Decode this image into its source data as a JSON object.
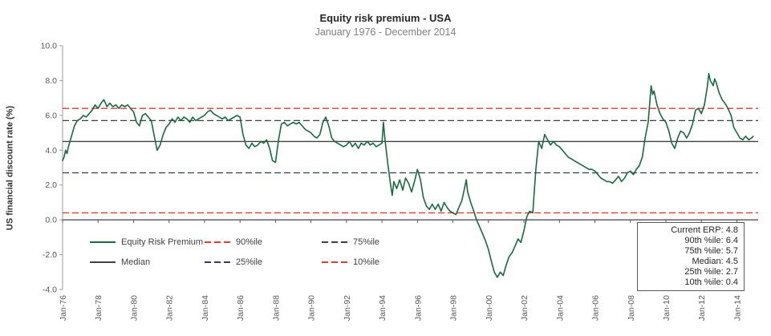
{
  "chart_data": {
    "type": "line",
    "title": "Equity risk premium - USA",
    "subtitle": "January 1976 - December 2014",
    "ylabel": "US financial discount rate (%)",
    "ylim": [
      -4.0,
      10.0
    ],
    "x_range": [
      1976,
      2015.2
    ],
    "grid": "off",
    "legend_position": "inside-bottom-left",
    "ytick_values": [
      10,
      8,
      6,
      4,
      2,
      0,
      -2,
      -4
    ],
    "ytick_labels": [
      "10.0",
      "8.0",
      "6.0",
      "4.0",
      "2.0",
      "0.0",
      "-2.0",
      "-4.0"
    ],
    "xtick_years": [
      1976,
      1978,
      1980,
      1982,
      1984,
      1986,
      1988,
      1990,
      1992,
      1994,
      1996,
      1998,
      2000,
      2002,
      2004,
      2006,
      2008,
      2010,
      2012,
      2014
    ],
    "xtick_labels": [
      "Jan-76",
      "Jan-78",
      "Jan-80",
      "Jan-82",
      "Jan-84",
      "Jan-86",
      "Jan-88",
      "Jan-90",
      "Jan-92",
      "Jan-94",
      "Jan-96",
      "Jan-98",
      "Jan-00",
      "Jan-02",
      "Jan-04",
      "Jan-06",
      "Jan-08",
      "Jan-10",
      "Jan-12",
      "Jan-14"
    ],
    "series": [
      {
        "name": "Equity Risk Premium",
        "color": "#176b3e",
        "points": [
          [
            1976.0,
            3.4
          ],
          [
            1976.08,
            3.6
          ],
          [
            1976.17,
            4.0
          ],
          [
            1976.25,
            3.8
          ],
          [
            1976.33,
            4.2
          ],
          [
            1976.5,
            4.8
          ],
          [
            1976.67,
            5.4
          ],
          [
            1976.83,
            5.7
          ],
          [
            1977.0,
            5.8
          ],
          [
            1977.17,
            6.0
          ],
          [
            1977.33,
            5.9
          ],
          [
            1977.5,
            6.1
          ],
          [
            1977.67,
            6.3
          ],
          [
            1977.83,
            6.6
          ],
          [
            1978.0,
            6.4
          ],
          [
            1978.17,
            6.7
          ],
          [
            1978.33,
            6.9
          ],
          [
            1978.5,
            6.5
          ],
          [
            1978.67,
            6.7
          ],
          [
            1978.83,
            6.5
          ],
          [
            1979.0,
            6.6
          ],
          [
            1979.17,
            6.4
          ],
          [
            1979.33,
            6.6
          ],
          [
            1979.5,
            6.5
          ],
          [
            1979.67,
            6.6
          ],
          [
            1979.83,
            6.4
          ],
          [
            1980.0,
            6.2
          ],
          [
            1980.17,
            5.6
          ],
          [
            1980.33,
            5.4
          ],
          [
            1980.5,
            6.0
          ],
          [
            1980.67,
            6.1
          ],
          [
            1980.83,
            5.9
          ],
          [
            1981.0,
            5.7
          ],
          [
            1981.17,
            4.8
          ],
          [
            1981.33,
            4.0
          ],
          [
            1981.5,
            4.3
          ],
          [
            1981.67,
            4.9
          ],
          [
            1981.83,
            5.3
          ],
          [
            1982.0,
            5.5
          ],
          [
            1982.17,
            5.8
          ],
          [
            1982.33,
            5.6
          ],
          [
            1982.5,
            5.9
          ],
          [
            1982.67,
            5.7
          ],
          [
            1982.83,
            5.9
          ],
          [
            1983.0,
            5.8
          ],
          [
            1983.17,
            5.6
          ],
          [
            1983.33,
            5.9
          ],
          [
            1983.5,
            5.7
          ],
          [
            1983.67,
            5.8
          ],
          [
            1983.83,
            5.9
          ],
          [
            1984.0,
            6.0
          ],
          [
            1984.17,
            6.2
          ],
          [
            1984.33,
            6.3
          ],
          [
            1984.5,
            6.1
          ],
          [
            1984.67,
            6.0
          ],
          [
            1984.83,
            5.9
          ],
          [
            1985.0,
            5.8
          ],
          [
            1985.17,
            5.9
          ],
          [
            1985.33,
            5.7
          ],
          [
            1985.5,
            5.8
          ],
          [
            1985.67,
            5.9
          ],
          [
            1985.83,
            6.0
          ],
          [
            1986.0,
            5.9
          ],
          [
            1986.17,
            4.9
          ],
          [
            1986.33,
            4.3
          ],
          [
            1986.5,
            4.1
          ],
          [
            1986.67,
            4.4
          ],
          [
            1986.83,
            4.2
          ],
          [
            1987.0,
            4.3
          ],
          [
            1987.17,
            4.5
          ],
          [
            1987.33,
            4.4
          ],
          [
            1987.5,
            4.6
          ],
          [
            1987.67,
            4.1
          ],
          [
            1987.83,
            3.4
          ],
          [
            1988.0,
            3.3
          ],
          [
            1988.17,
            4.6
          ],
          [
            1988.33,
            5.5
          ],
          [
            1988.5,
            5.6
          ],
          [
            1988.67,
            5.4
          ],
          [
            1988.83,
            5.5
          ],
          [
            1989.0,
            5.6
          ],
          [
            1989.17,
            5.5
          ],
          [
            1989.33,
            5.6
          ],
          [
            1989.5,
            5.4
          ],
          [
            1989.67,
            5.2
          ],
          [
            1989.83,
            5.1
          ],
          [
            1990.0,
            5.0
          ],
          [
            1990.17,
            4.8
          ],
          [
            1990.33,
            4.7
          ],
          [
            1990.5,
            4.9
          ],
          [
            1990.67,
            5.6
          ],
          [
            1990.83,
            5.9
          ],
          [
            1991.0,
            5.4
          ],
          [
            1991.17,
            4.7
          ],
          [
            1991.33,
            4.5
          ],
          [
            1991.5,
            4.4
          ],
          [
            1991.67,
            4.3
          ],
          [
            1991.83,
            4.2
          ],
          [
            1992.0,
            4.3
          ],
          [
            1992.17,
            4.5
          ],
          [
            1992.33,
            4.2
          ],
          [
            1992.5,
            4.4
          ],
          [
            1992.67,
            4.1
          ],
          [
            1992.83,
            4.4
          ],
          [
            1993.0,
            4.3
          ],
          [
            1993.17,
            4.5
          ],
          [
            1993.33,
            4.3
          ],
          [
            1993.5,
            4.4
          ],
          [
            1993.67,
            4.2
          ],
          [
            1993.83,
            4.3
          ],
          [
            1994.0,
            4.4
          ],
          [
            1994.08,
            5.6
          ],
          [
            1994.17,
            4.6
          ],
          [
            1994.33,
            3.2
          ],
          [
            1994.5,
            1.9
          ],
          [
            1994.58,
            1.4
          ],
          [
            1994.67,
            2.2
          ],
          [
            1994.83,
            1.8
          ],
          [
            1995.0,
            2.3
          ],
          [
            1995.17,
            1.7
          ],
          [
            1995.33,
            2.4
          ],
          [
            1995.5,
            2.1
          ],
          [
            1995.67,
            1.6
          ],
          [
            1995.83,
            2.2
          ],
          [
            1996.0,
            2.9
          ],
          [
            1996.17,
            2.3
          ],
          [
            1996.33,
            1.3
          ],
          [
            1996.5,
            0.8
          ],
          [
            1996.67,
            0.6
          ],
          [
            1996.83,
            0.9
          ],
          [
            1997.0,
            0.6
          ],
          [
            1997.17,
            0.9
          ],
          [
            1997.33,
            0.5
          ],
          [
            1997.5,
            1.0
          ],
          [
            1997.67,
            0.7
          ],
          [
            1997.83,
            0.5
          ],
          [
            1998.0,
            0.4
          ],
          [
            1998.17,
            0.3
          ],
          [
            1998.33,
            0.7
          ],
          [
            1998.5,
            1.1
          ],
          [
            1998.67,
            1.9
          ],
          [
            1998.75,
            2.3
          ],
          [
            1998.83,
            1.6
          ],
          [
            1999.0,
            1.0
          ],
          [
            1999.17,
            0.5
          ],
          [
            1999.33,
            0.0
          ],
          [
            1999.5,
            -0.4
          ],
          [
            1999.67,
            -0.8
          ],
          [
            1999.83,
            -1.2
          ],
          [
            2000.0,
            -1.7
          ],
          [
            2000.17,
            -2.4
          ],
          [
            2000.33,
            -3.0
          ],
          [
            2000.5,
            -3.3
          ],
          [
            2000.67,
            -3.0
          ],
          [
            2000.83,
            -3.2
          ],
          [
            2001.0,
            -2.6
          ],
          [
            2001.17,
            -2.1
          ],
          [
            2001.33,
            -1.9
          ],
          [
            2001.5,
            -1.5
          ],
          [
            2001.67,
            -1.1
          ],
          [
            2001.83,
            -1.3
          ],
          [
            2002.0,
            -0.6
          ],
          [
            2002.17,
            0.2
          ],
          [
            2002.33,
            0.5
          ],
          [
            2002.5,
            0.4
          ],
          [
            2002.58,
            1.6
          ],
          [
            2002.67,
            2.9
          ],
          [
            2002.83,
            4.5
          ],
          [
            2003.0,
            4.1
          ],
          [
            2003.17,
            4.9
          ],
          [
            2003.33,
            4.6
          ],
          [
            2003.5,
            4.3
          ],
          [
            2003.67,
            4.5
          ],
          [
            2003.83,
            4.3
          ],
          [
            2004.0,
            4.2
          ],
          [
            2004.17,
            4.0
          ],
          [
            2004.33,
            3.8
          ],
          [
            2004.5,
            3.6
          ],
          [
            2004.67,
            3.5
          ],
          [
            2004.83,
            3.4
          ],
          [
            2005.0,
            3.3
          ],
          [
            2005.17,
            3.2
          ],
          [
            2005.33,
            3.1
          ],
          [
            2005.5,
            3.0
          ],
          [
            2005.67,
            2.9
          ],
          [
            2005.83,
            2.9
          ],
          [
            2006.0,
            2.8
          ],
          [
            2006.17,
            2.6
          ],
          [
            2006.33,
            2.4
          ],
          [
            2006.5,
            2.3
          ],
          [
            2006.67,
            2.2
          ],
          [
            2006.83,
            2.2
          ],
          [
            2007.0,
            2.1
          ],
          [
            2007.17,
            2.3
          ],
          [
            2007.33,
            2.5
          ],
          [
            2007.5,
            2.2
          ],
          [
            2007.67,
            2.4
          ],
          [
            2007.83,
            2.7
          ],
          [
            2008.0,
            2.8
          ],
          [
            2008.17,
            2.6
          ],
          [
            2008.33,
            2.9
          ],
          [
            2008.5,
            3.1
          ],
          [
            2008.67,
            3.6
          ],
          [
            2008.83,
            4.7
          ],
          [
            2009.0,
            5.6
          ],
          [
            2009.17,
            7.7
          ],
          [
            2009.25,
            7.2
          ],
          [
            2009.33,
            7.4
          ],
          [
            2009.5,
            6.6
          ],
          [
            2009.67,
            6.1
          ],
          [
            2009.83,
            5.8
          ],
          [
            2010.0,
            5.6
          ],
          [
            2010.17,
            5.1
          ],
          [
            2010.33,
            4.4
          ],
          [
            2010.5,
            4.1
          ],
          [
            2010.67,
            4.7
          ],
          [
            2010.83,
            5.1
          ],
          [
            2011.0,
            5.0
          ],
          [
            2011.17,
            4.7
          ],
          [
            2011.33,
            5.0
          ],
          [
            2011.5,
            5.5
          ],
          [
            2011.67,
            6.3
          ],
          [
            2011.83,
            6.4
          ],
          [
            2012.0,
            6.1
          ],
          [
            2012.17,
            6.6
          ],
          [
            2012.33,
            7.6
          ],
          [
            2012.42,
            8.4
          ],
          [
            2012.5,
            8.0
          ],
          [
            2012.67,
            7.7
          ],
          [
            2012.75,
            8.1
          ],
          [
            2012.83,
            7.9
          ],
          [
            2013.0,
            7.3
          ],
          [
            2013.17,
            6.9
          ],
          [
            2013.33,
            6.7
          ],
          [
            2013.5,
            6.4
          ],
          [
            2013.67,
            6.0
          ],
          [
            2013.83,
            5.3
          ],
          [
            2014.0,
            5.0
          ],
          [
            2014.17,
            4.7
          ],
          [
            2014.33,
            4.6
          ],
          [
            2014.5,
            4.8
          ],
          [
            2014.67,
            4.6
          ],
          [
            2014.83,
            4.7
          ],
          [
            2014.92,
            4.8
          ]
        ]
      }
    ],
    "reference_lines": [
      {
        "key": "p90",
        "name": "90%ile",
        "value": 6.4,
        "color": "#e8392d",
        "style": "dashed"
      },
      {
        "key": "p75",
        "name": "75%ile",
        "value": 5.7,
        "color": "#3f3f3f",
        "style": "dashed"
      },
      {
        "key": "median",
        "name": "Median",
        "value": 4.5,
        "color": "#404040",
        "style": "solid"
      },
      {
        "key": "p25",
        "name": "25%ile",
        "value": 2.7,
        "color": "#2f3e53",
        "style": "dashed"
      },
      {
        "key": "p10",
        "name": "10%ile",
        "value": 0.4,
        "color": "#e8392d",
        "style": "dashed"
      }
    ],
    "legend": {
      "items": [
        {
          "label": "Equity Risk Premium",
          "color": "#176b3e",
          "style": "solid"
        },
        {
          "label": "90%ile",
          "color": "#e8392d",
          "style": "dashed"
        },
        {
          "label": "75%ile",
          "color": "#3f3f3f",
          "style": "dashed"
        },
        {
          "label": "Median",
          "color": "#404040",
          "style": "solid"
        },
        {
          "label": "25%ile",
          "color": "#2f3e53",
          "style": "dashed"
        },
        {
          "label": "10%ile",
          "color": "#e8392d",
          "style": "dashed"
        }
      ]
    },
    "stats_box": {
      "lines": [
        "Current ERP: 4.8",
        "90th %ile: 6.4",
        "75th %ile: 5.7",
        "Median: 4.5",
        "25th %ile: 2.7",
        "10th %ile: 0.4"
      ]
    }
  }
}
